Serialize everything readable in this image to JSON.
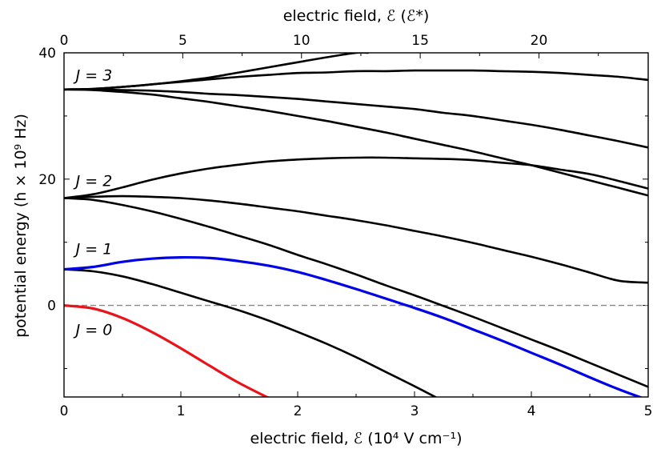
{
  "chart_data": {
    "type": "line",
    "xlabel": "electric field, ℰ (10⁴ V cm⁻¹)",
    "x2label": "electric field, ℰ (ℰ*)",
    "ylabel": "potential energy (h × 10⁹ Hz)",
    "xlim": [
      0,
      5
    ],
    "x2lim": [
      0,
      24.6
    ],
    "ylim": [
      -14.5,
      40
    ],
    "xticks": [
      0,
      1,
      2,
      3,
      4,
      5
    ],
    "xtick_labels": [
      "0",
      "1",
      "2",
      "3",
      "4",
      "5"
    ],
    "x2ticks": [
      0,
      5,
      10,
      15,
      20
    ],
    "x2tick_labels": [
      "0",
      "5",
      "10",
      "15",
      "20"
    ],
    "yticks": [
      0,
      20,
      40
    ],
    "ytick_labels": [
      "0",
      "20",
      "40"
    ],
    "grid": false,
    "reference_line": {
      "y": 0,
      "style": "dashed",
      "color": "#888888"
    },
    "level_labels": [
      {
        "text": "J = 0",
        "x": 0.1,
        "y": -3.8
      },
      {
        "text": "J = 1",
        "x": 0.1,
        "y": 9.0
      },
      {
        "text": "J = 2",
        "x": 0.1,
        "y": 19.8
      },
      {
        "text": "J = 3",
        "x": 0.1,
        "y": 36.5
      }
    ],
    "series": [
      {
        "color": "#e8141c",
        "x": [
          0,
          0.25,
          0.5,
          0.75,
          1.0,
          1.25,
          1.5,
          1.81
        ],
        "y": [
          0,
          -0.5,
          -2.0,
          -4.2,
          -6.8,
          -9.6,
          -12.3,
          -15.2
        ]
      },
      {
        "color": "#0000e6",
        "x": [
          0,
          0.25,
          0.5,
          0.75,
          1.0,
          1.25,
          1.5,
          1.75,
          2.0,
          2.25,
          2.5,
          2.75,
          3.0,
          3.25,
          3.5,
          3.75,
          4.0,
          4.25,
          4.5,
          4.75,
          5.0
        ],
        "y": [
          5.7,
          6.1,
          6.9,
          7.4,
          7.6,
          7.5,
          7.0,
          6.3,
          5.3,
          4.0,
          2.6,
          1.1,
          -0.4,
          -2.0,
          -3.8,
          -5.6,
          -7.5,
          -9.4,
          -11.4,
          -13.3,
          -15.0
        ]
      },
      {
        "color": "#000000",
        "x": [
          0,
          0.25,
          0.5,
          0.75,
          1.0,
          1.25,
          1.5,
          1.75,
          2.0,
          2.25,
          2.5,
          2.75,
          3.0,
          3.25
        ],
        "y": [
          5.7,
          5.4,
          4.6,
          3.4,
          2.0,
          0.6,
          -0.8,
          -2.4,
          -4.2,
          -6.1,
          -8.2,
          -10.5,
          -12.8,
          -15.2
        ]
      },
      {
        "color": "#000000",
        "x": [
          0,
          0.25,
          0.5,
          0.75,
          1.0,
          1.25,
          1.5,
          1.75,
          2.0,
          2.25,
          2.5,
          2.75,
          3.0,
          3.25,
          3.5,
          3.75,
          4.0,
          4.25,
          4.5,
          4.75,
          5.0
        ],
        "y": [
          17.0,
          17.6,
          18.7,
          19.9,
          20.9,
          21.7,
          22.3,
          22.8,
          23.1,
          23.3,
          23.4,
          23.4,
          23.3,
          23.2,
          23.0,
          22.6,
          22.2,
          21.5,
          20.8,
          19.7,
          18.5
        ]
      },
      {
        "color": "#000000",
        "x": [
          0,
          0.25,
          0.5,
          0.75,
          1.0,
          1.25,
          1.5,
          1.75,
          2.0,
          2.25,
          2.5,
          2.75,
          3.0,
          3.25,
          3.5,
          3.75,
          4.0,
          4.25,
          4.5,
          4.75,
          5.0
        ],
        "y": [
          17.0,
          17.2,
          17.3,
          17.2,
          17.0,
          16.6,
          16.1,
          15.5,
          14.9,
          14.2,
          13.5,
          12.7,
          11.8,
          10.9,
          9.9,
          8.8,
          7.7,
          6.5,
          5.2,
          3.9,
          3.6
        ]
      },
      {
        "color": "#000000",
        "x": [
          0,
          0.25,
          0.5,
          0.75,
          1.0,
          1.25,
          1.5,
          1.75,
          2.0,
          2.25,
          2.5,
          2.75,
          3.0,
          3.25,
          3.5,
          3.75,
          4.0,
          4.25,
          4.5,
          4.75,
          5.0
        ],
        "y": [
          17.0,
          16.7,
          15.9,
          14.9,
          13.7,
          12.4,
          11.0,
          9.6,
          8.0,
          6.5,
          4.9,
          3.2,
          1.6,
          -0.1,
          -1.8,
          -3.6,
          -5.4,
          -7.2,
          -9.1,
          -11.0,
          -12.9
        ]
      },
      {
        "color": "#000000",
        "x": [
          0,
          0.25,
          0.5,
          0.75,
          1.0,
          1.25,
          1.5,
          1.75,
          2.0,
          2.25,
          2.5,
          2.6
        ],
        "y": [
          34.2,
          34.3,
          34.6,
          35.0,
          35.5,
          36.1,
          36.9,
          37.7,
          38.5,
          39.3,
          40.0,
          40.0
        ]
      },
      {
        "color": "#000000",
        "x": [
          0,
          0.25,
          0.5,
          0.75,
          1.0,
          1.25,
          1.5,
          1.75,
          2.0,
          2.25,
          2.5,
          2.75,
          3.0,
          3.25,
          3.5,
          3.75,
          4.0,
          4.25,
          4.5,
          4.75,
          5.0
        ],
        "y": [
          34.2,
          34.3,
          34.6,
          35.0,
          35.4,
          35.8,
          36.2,
          36.5,
          36.8,
          36.9,
          37.1,
          37.1,
          37.2,
          37.2,
          37.2,
          37.1,
          37.0,
          36.8,
          36.5,
          36.2,
          35.7
        ]
      },
      {
        "color": "#000000",
        "x": [
          0,
          0.25,
          0.5,
          0.75,
          1.0,
          1.25,
          1.5,
          1.75,
          2.0,
          2.25,
          2.5,
          2.75,
          3.0,
          3.25,
          3.5,
          3.75,
          4.0,
          4.25,
          4.5,
          4.75,
          5.0
        ],
        "y": [
          34.2,
          34.2,
          34.1,
          34.0,
          33.8,
          33.5,
          33.3,
          33.0,
          32.7,
          32.3,
          31.9,
          31.5,
          31.1,
          30.5,
          30.0,
          29.3,
          28.6,
          27.8,
          26.9,
          26.0,
          25.0
        ]
      },
      {
        "color": "#000000",
        "x": [
          0,
          0.25,
          0.5,
          0.75,
          1.0,
          1.25,
          1.5,
          1.75,
          2.0,
          2.25,
          2.5,
          2.75,
          3.0,
          3.25,
          3.5,
          3.75,
          4.0,
          4.25,
          4.5,
          4.75,
          5.0
        ],
        "y": [
          34.2,
          34.1,
          33.8,
          33.4,
          32.8,
          32.2,
          31.5,
          30.8,
          30.0,
          29.2,
          28.3,
          27.4,
          26.4,
          25.4,
          24.4,
          23.3,
          22.2,
          21.0,
          19.8,
          18.6,
          17.4
        ]
      }
    ]
  }
}
